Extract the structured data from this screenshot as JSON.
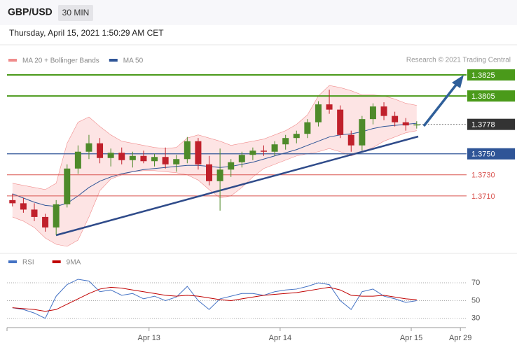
{
  "header": {
    "symbol": "GBP/USD",
    "timeframe": "30 MIN",
    "timestamp": "Thursday, April 15, 2021 1:50:29 AM CET",
    "credit": "Research © 2021 Trading Central"
  },
  "chart_data": [
    {
      "type": "candlestick",
      "up_color": "#4e8a2a",
      "down_color": "#c0202b",
      "x": [
        0,
        1,
        2,
        3,
        4,
        5,
        6,
        7,
        8,
        9,
        10,
        11,
        12,
        13,
        14,
        15,
        16,
        17,
        18,
        19,
        20,
        21,
        22,
        23,
        24,
        25,
        26,
        27,
        28,
        29,
        30,
        31,
        32,
        33,
        34,
        35,
        36,
        37
      ],
      "xlim": [
        -0.5,
        41.5
      ],
      "ylim": [
        1.366,
        1.3833
      ],
      "open": [
        1.3706,
        1.3703,
        1.3697,
        1.369,
        1.368,
        1.3702,
        1.3736,
        1.3752,
        1.376,
        1.3746,
        1.3751,
        1.3744,
        1.3748,
        1.3743,
        1.3747,
        1.374,
        1.3745,
        1.3762,
        1.374,
        1.3724,
        1.3735,
        1.3742,
        1.3749,
        1.3753,
        1.3752,
        1.3759,
        1.3765,
        1.3769,
        1.378,
        1.3797,
        1.3792,
        1.3768,
        1.3758,
        1.3783,
        1.3795,
        1.3786,
        1.378,
        1.3777
      ],
      "high": [
        1.3712,
        1.3708,
        1.3703,
        1.3693,
        1.3706,
        1.374,
        1.3758,
        1.3768,
        1.3765,
        1.3755,
        1.3756,
        1.3752,
        1.3753,
        1.375,
        1.3756,
        1.3749,
        1.3766,
        1.3765,
        1.3748,
        1.3755,
        1.3745,
        1.3752,
        1.3756,
        1.3758,
        1.3762,
        1.3768,
        1.3772,
        1.3783,
        1.38,
        1.3811,
        1.3796,
        1.3772,
        1.3786,
        1.3798,
        1.3799,
        1.379,
        1.3784,
        1.3781
      ],
      "low": [
        1.37,
        1.3694,
        1.3686,
        1.3676,
        1.3673,
        1.3699,
        1.3731,
        1.3745,
        1.3741,
        1.3738,
        1.374,
        1.3737,
        1.3741,
        1.3738,
        1.3736,
        1.3733,
        1.3741,
        1.3735,
        1.372,
        1.3696,
        1.3728,
        1.3737,
        1.3744,
        1.3748,
        1.3748,
        1.3754,
        1.376,
        1.3765,
        1.3776,
        1.3788,
        1.3765,
        1.3752,
        1.3753,
        1.3778,
        1.3782,
        1.3776,
        1.3772,
        1.3774
      ],
      "close": [
        1.3703,
        1.3697,
        1.369,
        1.368,
        1.3702,
        1.3736,
        1.3752,
        1.376,
        1.3746,
        1.3751,
        1.3744,
        1.3748,
        1.3743,
        1.3747,
        1.374,
        1.3745,
        1.3762,
        1.374,
        1.3724,
        1.3735,
        1.3742,
        1.3749,
        1.3753,
        1.3752,
        1.3759,
        1.3765,
        1.3769,
        1.378,
        1.3797,
        1.3792,
        1.3768,
        1.3758,
        1.3783,
        1.3795,
        1.3786,
        1.378,
        1.3777,
        1.3778
      ],
      "series": [
        {
          "name": "MA 20 + Bollinger Bands",
          "color": "#f08c8c",
          "band_color": "#fde4e4",
          "upper": [
            1.3722,
            1.372,
            1.3718,
            1.3716,
            1.3722,
            1.376,
            1.378,
            1.3785,
            1.3776,
            1.3768,
            1.3762,
            1.376,
            1.3758,
            1.3756,
            1.3755,
            1.3756,
            1.3765,
            1.3768,
            1.3765,
            1.3762,
            1.3758,
            1.376,
            1.3762,
            1.3764,
            1.3768,
            1.3772,
            1.3778,
            1.3787,
            1.3805,
            1.3815,
            1.3813,
            1.381,
            1.3806,
            1.3806,
            1.3805,
            1.3802,
            1.3798,
            1.3796
          ],
          "lower": [
            1.369,
            1.3686,
            1.368,
            1.367,
            1.3664,
            1.3662,
            1.3668,
            1.369,
            1.3715,
            1.3726,
            1.373,
            1.3733,
            1.3734,
            1.3734,
            1.3733,
            1.3732,
            1.373,
            1.3725,
            1.3716,
            1.3708,
            1.371,
            1.3718,
            1.3728,
            1.3736,
            1.374,
            1.3744,
            1.3748,
            1.375,
            1.3752,
            1.3755,
            1.3752,
            1.3748,
            1.3752,
            1.3756,
            1.3762,
            1.3766,
            1.377,
            1.3772
          ]
        },
        {
          "name": "MA 50",
          "color": "#2f5597",
          "values": [
            1.3712,
            1.3708,
            1.3704,
            1.3701,
            1.37,
            1.3703,
            1.371,
            1.3718,
            1.3724,
            1.3728,
            1.3731,
            1.3733,
            1.3735,
            1.3736,
            1.3737,
            1.3738,
            1.3739,
            1.3739,
            1.3738,
            1.3737,
            1.3738,
            1.374,
            1.3742,
            1.3745,
            1.3748,
            1.3751,
            1.3754,
            1.3758,
            1.3762,
            1.3766,
            1.3768,
            1.3769,
            1.3771,
            1.3774,
            1.3776,
            1.3777,
            1.3778,
            1.3779
          ]
        }
      ],
      "levels": [
        {
          "value": 1.3825,
          "label": "1.3825",
          "color": "#4a9a1a",
          "filled": true,
          "dotted": false
        },
        {
          "value": 1.3805,
          "label": "1.3805",
          "color": "#4a9a1a",
          "filled": true,
          "dotted": false
        },
        {
          "value": 1.3778,
          "label": "1.3778",
          "color": "#333333",
          "filled": true,
          "dotted": true
        },
        {
          "value": 1.375,
          "label": "1.3750",
          "color": "#2f5597",
          "filled": true,
          "dotted": false
        },
        {
          "value": 1.373,
          "label": "1.3730",
          "color": "#d9534f",
          "filled": false,
          "dotted": false
        },
        {
          "value": 1.371,
          "label": "1.3710",
          "color": "#d9534f",
          "filled": false,
          "dotted": false
        }
      ]
    },
    {
      "type": "line",
      "x": [
        0,
        1,
        2,
        3,
        4,
        5,
        6,
        7,
        8,
        9,
        10,
        11,
        12,
        13,
        14,
        15,
        16,
        17,
        18,
        19,
        20,
        21,
        22,
        23,
        24,
        25,
        26,
        27,
        28,
        29,
        30,
        31,
        32,
        33,
        34,
        35,
        36,
        37
      ],
      "xlim": [
        -0.5,
        41.5
      ],
      "xticks": [
        {
          "value": 12.5,
          "label": "Apr 13"
        },
        {
          "value": 24.5,
          "label": "Apr 14"
        },
        {
          "value": 36.5,
          "label": "Apr 15"
        },
        {
          "value": 41,
          "label": "Apr 29"
        }
      ],
      "ylim": [
        22,
        85
      ],
      "yticks": [
        30,
        50,
        70
      ],
      "series": [
        {
          "name": "RSI",
          "color": "#4472c4",
          "values": [
            42,
            40,
            36,
            30,
            55,
            68,
            74,
            72,
            60,
            62,
            56,
            58,
            52,
            55,
            50,
            54,
            66,
            50,
            40,
            52,
            55,
            58,
            58,
            56,
            60,
            62,
            63,
            66,
            70,
            68,
            50,
            40,
            60,
            63,
            55,
            52,
            48,
            50
          ]
        },
        {
          "name": "9MA",
          "color": "#c00000",
          "values": [
            42,
            41,
            40,
            38,
            40,
            46,
            52,
            58,
            63,
            65,
            64,
            62,
            60,
            58,
            56,
            55,
            56,
            55,
            53,
            51,
            50,
            52,
            54,
            56,
            57,
            58,
            59,
            61,
            63,
            65,
            62,
            56,
            55,
            55,
            56,
            54,
            52,
            51
          ]
        }
      ]
    }
  ]
}
